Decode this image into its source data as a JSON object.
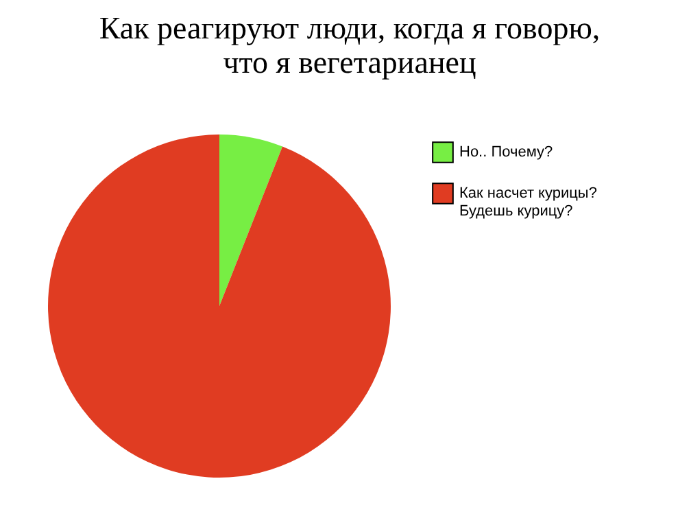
{
  "chart_data": {
    "type": "pie",
    "title": "Как реагируют люди, когда я говорю,\nчто я вегетарианец",
    "categories": [
      "Но.. Почему?",
      "Как насчет курицы? Будешь курицу?"
    ],
    "values": [
      6,
      94
    ],
    "colors": [
      "#77ee44",
      "#e03c22"
    ],
    "legend": "right"
  }
}
